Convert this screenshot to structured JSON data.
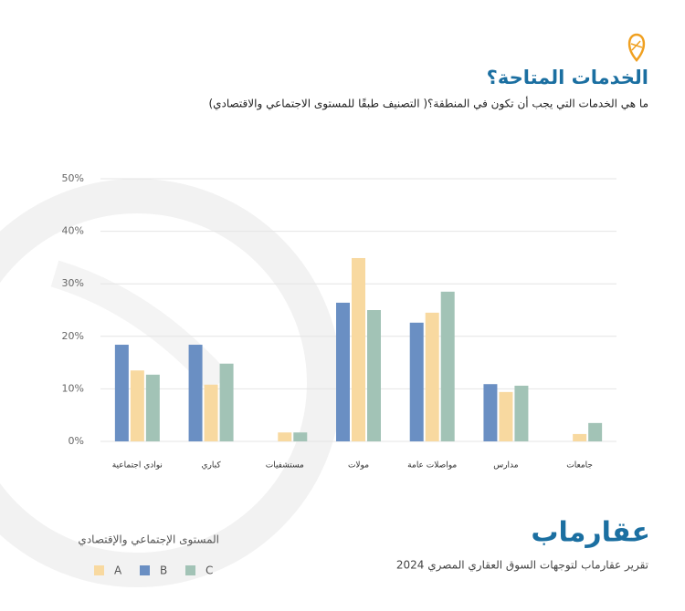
{
  "chart_data": {
    "type": "bar",
    "title": "الخدمات المتاحة؟",
    "subtitle": "ما هي الخدمات التي يجب أن تكون في المنطقة؟( التصنيف طبقًا للمستوى الاجتماعي والاقتصادي)",
    "categories": [
      "نوادي اجتماعية",
      "كباري",
      "مستشفيات",
      "مولات",
      "مواصلات عامة",
      "مدارس",
      "جامعات"
    ],
    "series": [
      {
        "name": "A",
        "color": "#f8d9a0",
        "values": [
          13.5,
          10.8,
          1.7,
          34.9,
          24.5,
          9.4,
          1.4
        ]
      },
      {
        "name": "B",
        "color": "#6a8fc3",
        "values": [
          18.4,
          18.4,
          0,
          26.4,
          22.6,
          10.9,
          0
        ]
      },
      {
        "name": "C",
        "color": "#a2c3b6",
        "values": [
          12.7,
          14.8,
          1.7,
          25,
          28.5,
          10.6,
          3.5
        ]
      }
    ],
    "ylim": [
      0,
      50
    ],
    "yticks": [
      {
        "value": 0,
        "label": "0%"
      },
      {
        "value": 10,
        "label": "10%"
      },
      {
        "value": 20,
        "label": "20%"
      },
      {
        "value": 30,
        "label": "30%"
      },
      {
        "value": 40,
        "label": "40%"
      },
      {
        "value": 50,
        "label": "50%"
      }
    ],
    "grid": true,
    "legend_title": "المستوى الإجتماعي والإقتصادي",
    "brand": "عقارماب",
    "footer": "تقرير عقارماب لتوجهات السوق العقاري المصري 2024"
  }
}
